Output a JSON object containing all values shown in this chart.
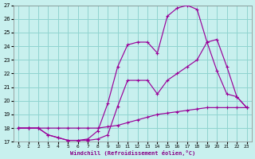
{
  "bg_color": "#c8f0ee",
  "grid_color": "#90d4d0",
  "line_color": "#990099",
  "xlabel": "Windchill (Refroidissement éolien,°C)",
  "xlim": [
    -0.5,
    23.5
  ],
  "ylim": [
    17,
    27
  ],
  "xticks": [
    0,
    1,
    2,
    3,
    4,
    5,
    6,
    7,
    8,
    9,
    10,
    11,
    12,
    13,
    14,
    15,
    16,
    17,
    18,
    19,
    20,
    21,
    22,
    23
  ],
  "yticks": [
    17,
    18,
    19,
    20,
    21,
    22,
    23,
    24,
    25,
    26,
    27
  ],
  "curve_flat_x": [
    0,
    1,
    2,
    3,
    4,
    5,
    6,
    7,
    8,
    9,
    10,
    11,
    12,
    13,
    14,
    15,
    16,
    17,
    18,
    19,
    20,
    21,
    22,
    23
  ],
  "curve_flat_y": [
    18,
    18,
    18,
    18,
    18,
    18,
    18,
    18,
    18,
    18.1,
    18.2,
    18.4,
    18.6,
    18.8,
    19.0,
    19.1,
    19.2,
    19.3,
    19.4,
    19.5,
    19.5,
    19.5,
    19.5,
    19.5
  ],
  "curve_mid_x": [
    0,
    1,
    2,
    3,
    4,
    5,
    6,
    7,
    8,
    9,
    10,
    11,
    12,
    13,
    14,
    15,
    16,
    17,
    18,
    19,
    20,
    21,
    22,
    23
  ],
  "curve_mid_y": [
    18,
    18,
    18,
    17.5,
    17.3,
    17.1,
    17.1,
    17.1,
    17.2,
    17.5,
    19.6,
    21.5,
    21.5,
    21.5,
    20.5,
    21.5,
    22.0,
    22.5,
    23.0,
    24.3,
    24.5,
    22.5,
    20.3,
    19.5
  ],
  "curve_top_x": [
    0,
    1,
    2,
    3,
    4,
    5,
    6,
    7,
    8,
    9,
    10,
    11,
    12,
    13,
    14,
    15,
    16,
    17,
    18,
    19,
    20,
    21,
    22,
    23
  ],
  "curve_top_y": [
    18,
    18,
    18,
    17.5,
    17.3,
    17.1,
    17.1,
    17.2,
    17.8,
    19.8,
    22.5,
    24.1,
    24.3,
    24.3,
    23.5,
    26.2,
    26.8,
    27.0,
    26.7,
    24.3,
    22.2,
    20.5,
    20.3,
    19.5
  ]
}
